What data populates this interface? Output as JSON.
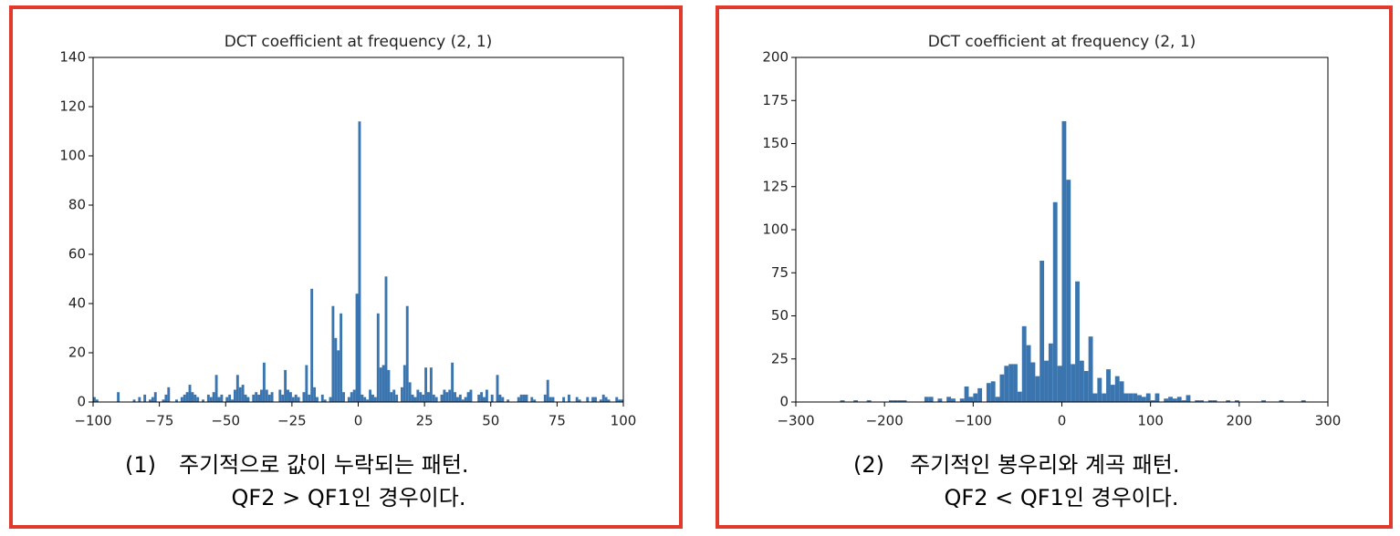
{
  "chart_data": [
    {
      "type": "histogram",
      "title": "DCT coefficient at frequency (2, 1)",
      "color": "#3b75af",
      "label": "(1)",
      "caption": [
        "주기적으로 값이 누락되는 패턴.",
        "QF2 > QF1인 경우이다."
      ],
      "bins": [
        -100,
        -99,
        -98,
        -97,
        -96,
        -95,
        -94,
        -93,
        -92,
        -91,
        -90,
        -89,
        -88,
        -87,
        -86,
        -85,
        -84,
        -83,
        -82,
        -81,
        -80,
        -79,
        -78,
        -77,
        -76,
        -75,
        -74,
        -73,
        -72,
        -71,
        -70,
        -69,
        -68,
        -67,
        -66,
        -65,
        -64,
        -63,
        -62,
        -61,
        -60,
        -59,
        -58,
        -57,
        -56,
        -55,
        -54,
        -53,
        -52,
        -51,
        -50,
        -49,
        -48,
        -47,
        -46,
        -45,
        -44,
        -43,
        -42,
        -41,
        -40,
        -39,
        -38,
        -37,
        -36,
        -35,
        -34,
        -33,
        -32,
        -31,
        -30,
        -29,
        -28,
        -27,
        -26,
        -25,
        -24,
        -23,
        -22,
        -21,
        -20,
        -19,
        -18,
        -17,
        -16,
        -15,
        -14,
        -13,
        -12,
        -11,
        -10,
        -9,
        -8,
        -7,
        -6,
        -5,
        -4,
        -3,
        -2,
        -1,
        0,
        1,
        2,
        3,
        4,
        5,
        6,
        7,
        8,
        9,
        10,
        11,
        12,
        13,
        14,
        15,
        16,
        17,
        18,
        19,
        20,
        21,
        22,
        23,
        24,
        25,
        26,
        27,
        28,
        29,
        30,
        31,
        32,
        33,
        34,
        35,
        36,
        37,
        38,
        39,
        40,
        41,
        42,
        43,
        44,
        45,
        46,
        47,
        48,
        49,
        50,
        51,
        52,
        53,
        54,
        55,
        56,
        57,
        58,
        59,
        60,
        61,
        62,
        63,
        64,
        65,
        66,
        67,
        68,
        69,
        70,
        71,
        72,
        73,
        74,
        75,
        76,
        77,
        78,
        79,
        80,
        81,
        82,
        83,
        84,
        85,
        86,
        87,
        88,
        89,
        90,
        91,
        92,
        93,
        94,
        95,
        96,
        97,
        98,
        99,
        100
      ],
      "counts": [
        2,
        1,
        0,
        0,
        0,
        0,
        0,
        0,
        0,
        4,
        0,
        0,
        0,
        0,
        0,
        1,
        0,
        2,
        0,
        3,
        0,
        1,
        2,
        4,
        0,
        0,
        1,
        3,
        6,
        0,
        0,
        1,
        0,
        2,
        3,
        4,
        7,
        4,
        3,
        2,
        0,
        1,
        0,
        3,
        2,
        4,
        11,
        2,
        3,
        0,
        2,
        3,
        1,
        5,
        11,
        6,
        7,
        3,
        2,
        0,
        3,
        4,
        3,
        5,
        16,
        5,
        3,
        4,
        0,
        0,
        5,
        3,
        13,
        5,
        4,
        2,
        3,
        2,
        0,
        4,
        15,
        3,
        46,
        6,
        2,
        0,
        3,
        1,
        0,
        2,
        39,
        26,
        21,
        36,
        4,
        0,
        2,
        4,
        5,
        44,
        114,
        3,
        2,
        1,
        5,
        3,
        2,
        36,
        14,
        15,
        51,
        13,
        4,
        5,
        3,
        0,
        6,
        15,
        39,
        8,
        3,
        2,
        5,
        4,
        3,
        14,
        4,
        14,
        3,
        2,
        0,
        3,
        5,
        4,
        5,
        16,
        4,
        2,
        3,
        1,
        2,
        4,
        5,
        0,
        0,
        3,
        4,
        2,
        5,
        0,
        3,
        0,
        11,
        3,
        2,
        0,
        1,
        0,
        0,
        0,
        2,
        3,
        3,
        3,
        0,
        2,
        1,
        0,
        0,
        0,
        3,
        9,
        2,
        2,
        0,
        0,
        0,
        2,
        0,
        3,
        0,
        0,
        2,
        1,
        0,
        0,
        2,
        0,
        2,
        2,
        0,
        1,
        3,
        2,
        1,
        0,
        0,
        2,
        1,
        1
      ],
      "xlim": [
        -100,
        100
      ],
      "xticks": [
        {
          "value": -100,
          "label": "−100"
        },
        {
          "value": -75,
          "label": "−75"
        },
        {
          "value": -50,
          "label": "−50"
        },
        {
          "value": -25,
          "label": "−25"
        },
        0,
        25,
        50,
        75,
        100
      ],
      "ylim": [
        0,
        140
      ],
      "yticks": [
        0,
        20,
        40,
        60,
        80,
        100,
        120,
        140
      ]
    },
    {
      "type": "histogram",
      "title": "DCT coefficient at frequency (2, 1)",
      "color": "#3b75af",
      "label": "(2)",
      "caption": [
        "주기적인 봉우리와 계곡 패턴.",
        "QF2 < QF1인 경우이다."
      ],
      "bins": [
        -260,
        -255,
        -250,
        -245,
        -240,
        -235,
        -230,
        -225,
        -220,
        -215,
        -210,
        -205,
        -200,
        -195,
        -190,
        -185,
        -180,
        -175,
        -170,
        -165,
        -160,
        -155,
        -150,
        -145,
        -140,
        -135,
        -130,
        -125,
        -120,
        -115,
        -110,
        -105,
        -100,
        -95,
        -90,
        -85,
        -80,
        -75,
        -70,
        -65,
        -60,
        -55,
        -50,
        -45,
        -40,
        -35,
        -30,
        -25,
        -20,
        -15,
        -10,
        -5,
        0,
        5,
        10,
        15,
        20,
        25,
        30,
        35,
        40,
        45,
        50,
        55,
        60,
        65,
        70,
        75,
        80,
        85,
        90,
        95,
        100,
        105,
        110,
        115,
        120,
        125,
        130,
        135,
        140,
        145,
        150,
        155,
        160,
        165,
        170,
        175,
        180,
        185,
        190,
        195,
        200,
        205,
        210,
        215,
        220,
        225,
        230,
        235,
        240,
        245,
        250,
        255,
        260,
        265,
        270,
        275,
        280
      ],
      "counts": [
        0,
        0,
        1,
        0,
        0,
        1,
        0,
        0,
        1,
        0,
        0,
        0,
        0,
        1,
        1,
        1,
        1,
        0,
        0,
        0,
        0,
        3,
        3,
        0,
        2,
        0,
        3,
        2,
        0,
        2,
        9,
        3,
        5,
        8,
        0,
        11,
        12,
        3,
        16,
        21,
        22,
        22,
        6,
        44,
        33,
        23,
        15,
        82,
        24,
        34,
        116,
        21,
        163,
        129,
        22,
        70,
        24,
        18,
        38,
        5,
        14,
        5,
        19,
        10,
        15,
        12,
        5,
        5,
        5,
        4,
        3,
        5,
        1,
        5,
        0,
        2,
        3,
        2,
        3,
        1,
        4,
        0,
        1,
        1,
        0,
        1,
        1,
        0,
        0,
        1,
        0,
        1,
        0,
        0,
        0,
        0,
        0,
        1,
        0,
        0,
        0,
        1,
        0,
        0,
        0,
        0,
        1,
        0
      ],
      "xlim": [
        -300,
        300
      ],
      "xticks": [
        {
          "value": -300,
          "label": "−300"
        },
        {
          "value": -200,
          "label": "−200"
        },
        {
          "value": -100,
          "label": "−100"
        },
        0,
        100,
        200,
        300
      ],
      "ylim": [
        0,
        200
      ],
      "yticks": [
        0,
        25,
        50,
        75,
        100,
        125,
        150,
        175,
        200
      ]
    }
  ]
}
